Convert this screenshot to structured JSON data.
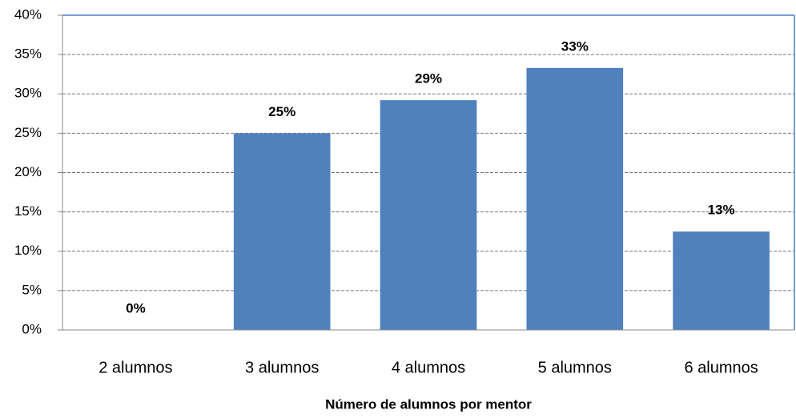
{
  "chart_data": {
    "type": "bar",
    "x_label": "Número de alumnos por mentor",
    "categories": [
      "2 alumnos",
      "3 alumnos",
      "4 alumnos",
      "5 alumnos",
      "6 alumnos"
    ],
    "values": [
      0,
      25,
      29.2,
      33.3,
      12.5
    ],
    "value_labels": [
      "0%",
      "25%",
      "29%",
      "33%",
      "13%"
    ],
    "color": "#4f81bd",
    "ylim": [
      0,
      40
    ],
    "yticks": [
      {
        "value": 0,
        "label": "0%"
      },
      {
        "value": 5,
        "label": "5%"
      },
      {
        "value": 10,
        "label": "10%"
      },
      {
        "value": 15,
        "label": "15%"
      },
      {
        "value": 20,
        "label": "20%"
      },
      {
        "value": 25,
        "label": "25%"
      },
      {
        "value": 30,
        "label": "30%"
      },
      {
        "value": 35,
        "label": "35%"
      },
      {
        "value": 40,
        "label": "40%"
      }
    ],
    "grid": true
  }
}
